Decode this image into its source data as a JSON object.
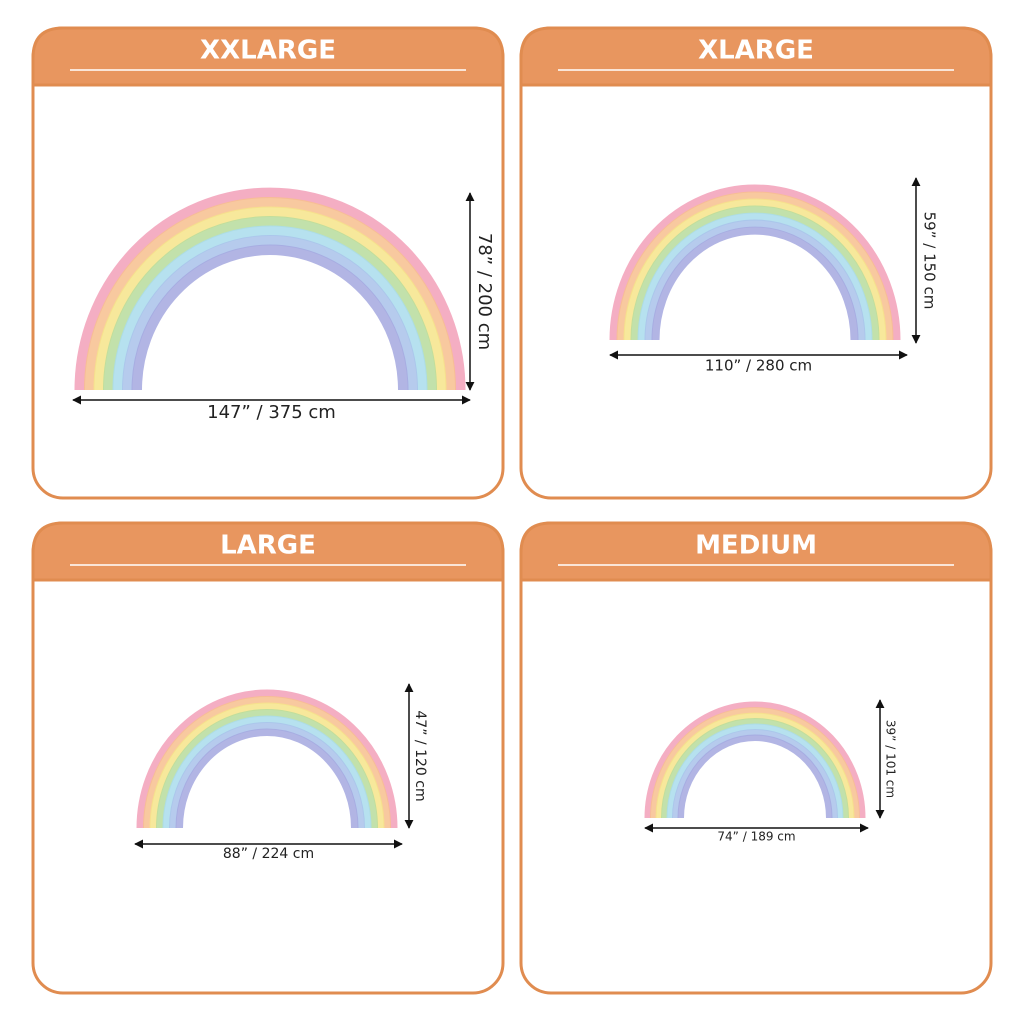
{
  "panels": [
    {
      "title": "XXLARGE",
      "width_label": "147” / 375 cm",
      "height_label": "78” / 200 cm"
    },
    {
      "title": "XLARGE",
      "width_label": "110” / 280 cm",
      "height_label": "59” / 150 cm"
    },
    {
      "title": "LARGE",
      "width_label": "88” / 224 cm",
      "height_label": "47” / 120 cm"
    },
    {
      "title": "MEDIUM",
      "width_label": "74” / 189 cm",
      "height_label": "39” / 101 cm"
    }
  ]
}
